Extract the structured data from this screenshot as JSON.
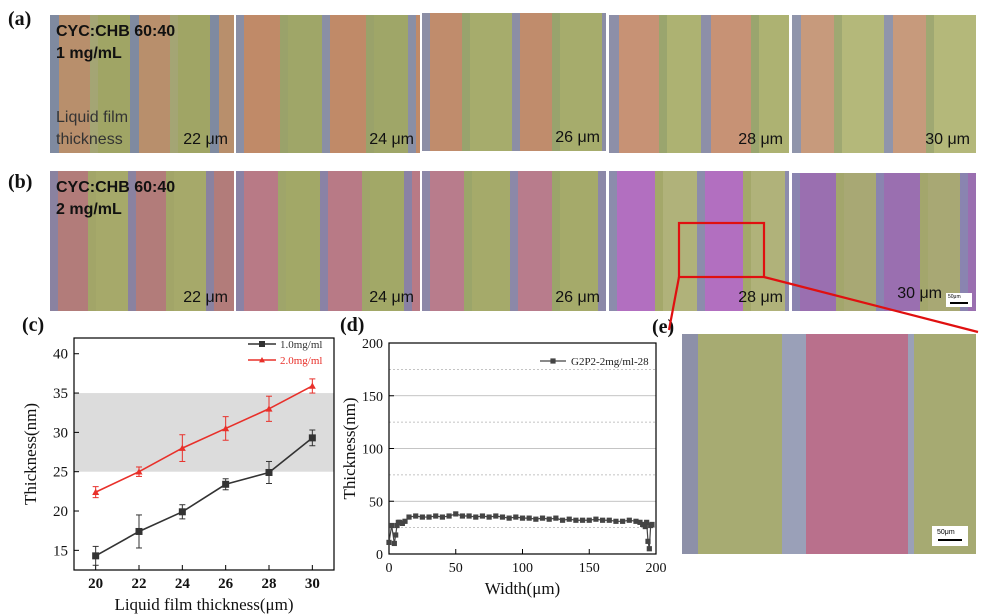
{
  "panel_labels": {
    "a": "(a)",
    "b": "(b)",
    "c": "(c)",
    "d": "(d)",
    "e": "(e)"
  },
  "row_a": {
    "condition_line1": "CYC:CHB   60:40",
    "condition_line2": "1 mg/mL",
    "liquid_label_line1": "Liquid film",
    "liquid_label_line2": "thickness",
    "thickness_labels": [
      "22 μm",
      "24 μm",
      "26 μm",
      "28 μm",
      "30 μm"
    ]
  },
  "row_b": {
    "condition_line1": "CYC:CHB   60:40",
    "condition_line2": "2 mg/mL",
    "thickness_labels": [
      "22 μm",
      "24 μm",
      "26 μm",
      "28 μm",
      "30 μm"
    ],
    "scalebar_label": "50μm"
  },
  "panel_e": {
    "scalebar_label": "50μm"
  },
  "colors": {
    "series_1": "#333333",
    "series_2": "#e8302a",
    "highlight": "#e01010",
    "shaded_band": "#dcdcdc"
  },
  "chart_data": [
    {
      "id": "c",
      "type": "line",
      "xlabel": "Liquid film thickness(μm)",
      "ylabel": "Thickness(nm)",
      "xlim": [
        19,
        31
      ],
      "ylim": [
        12.5,
        42
      ],
      "xticks": [
        20,
        22,
        24,
        26,
        28,
        30
      ],
      "yticks": [
        15,
        20,
        25,
        30,
        35,
        40
      ],
      "shaded_band": [
        25,
        35
      ],
      "x": [
        20,
        22,
        24,
        26,
        28,
        30
      ],
      "series": [
        {
          "name": "1.0mg/ml",
          "marker": "square",
          "color": "#333333",
          "values": [
            14.3,
            17.4,
            19.9,
            23.4,
            24.9,
            29.3
          ],
          "errors": [
            1.2,
            2.1,
            0.9,
            0.7,
            1.4,
            1.0
          ]
        },
        {
          "name": "2.0mg/ml",
          "marker": "triangle",
          "color": "#e8302a",
          "values": [
            22.4,
            25.0,
            28.0,
            30.5,
            33.0,
            35.9
          ],
          "errors": [
            0.7,
            0.6,
            1.7,
            1.5,
            1.6,
            0.9
          ]
        }
      ]
    },
    {
      "id": "d",
      "type": "line",
      "xlabel": "Width(μm)",
      "ylabel": "Thickness(nm)",
      "xlim": [
        0,
        200
      ],
      "ylim": [
        0,
        200
      ],
      "xticks": [
        0,
        50,
        100,
        150,
        200
      ],
      "yticks": [
        0,
        50,
        100,
        150,
        200
      ],
      "grid_y": [
        25,
        50,
        75,
        100,
        125,
        150,
        175
      ],
      "series": [
        {
          "name": "G2P2-2mg/ml-28",
          "marker": "square",
          "color": "#444444",
          "x": [
            0,
            2,
            4,
            5,
            6,
            7,
            8,
            10,
            12,
            15,
            20,
            25,
            30,
            35,
            40,
            45,
            50,
            55,
            60,
            65,
            70,
            75,
            80,
            85,
            90,
            95,
            100,
            105,
            110,
            115,
            120,
            125,
            130,
            135,
            140,
            145,
            150,
            155,
            160,
            165,
            170,
            175,
            180,
            185,
            188,
            190,
            192,
            193,
            194,
            195,
            196,
            197
          ],
          "values": [
            11,
            27,
            10,
            18,
            27,
            30,
            30,
            29,
            31,
            35,
            36,
            35,
            35,
            36,
            35,
            36,
            38,
            36,
            36,
            35,
            36,
            35,
            36,
            35,
            34,
            35,
            34,
            34,
            33,
            34,
            33,
            34,
            32,
            33,
            32,
            32,
            32,
            33,
            32,
            32,
            31,
            31,
            32,
            31,
            30,
            28,
            26,
            30,
            12,
            5,
            27,
            28
          ]
        }
      ]
    }
  ]
}
